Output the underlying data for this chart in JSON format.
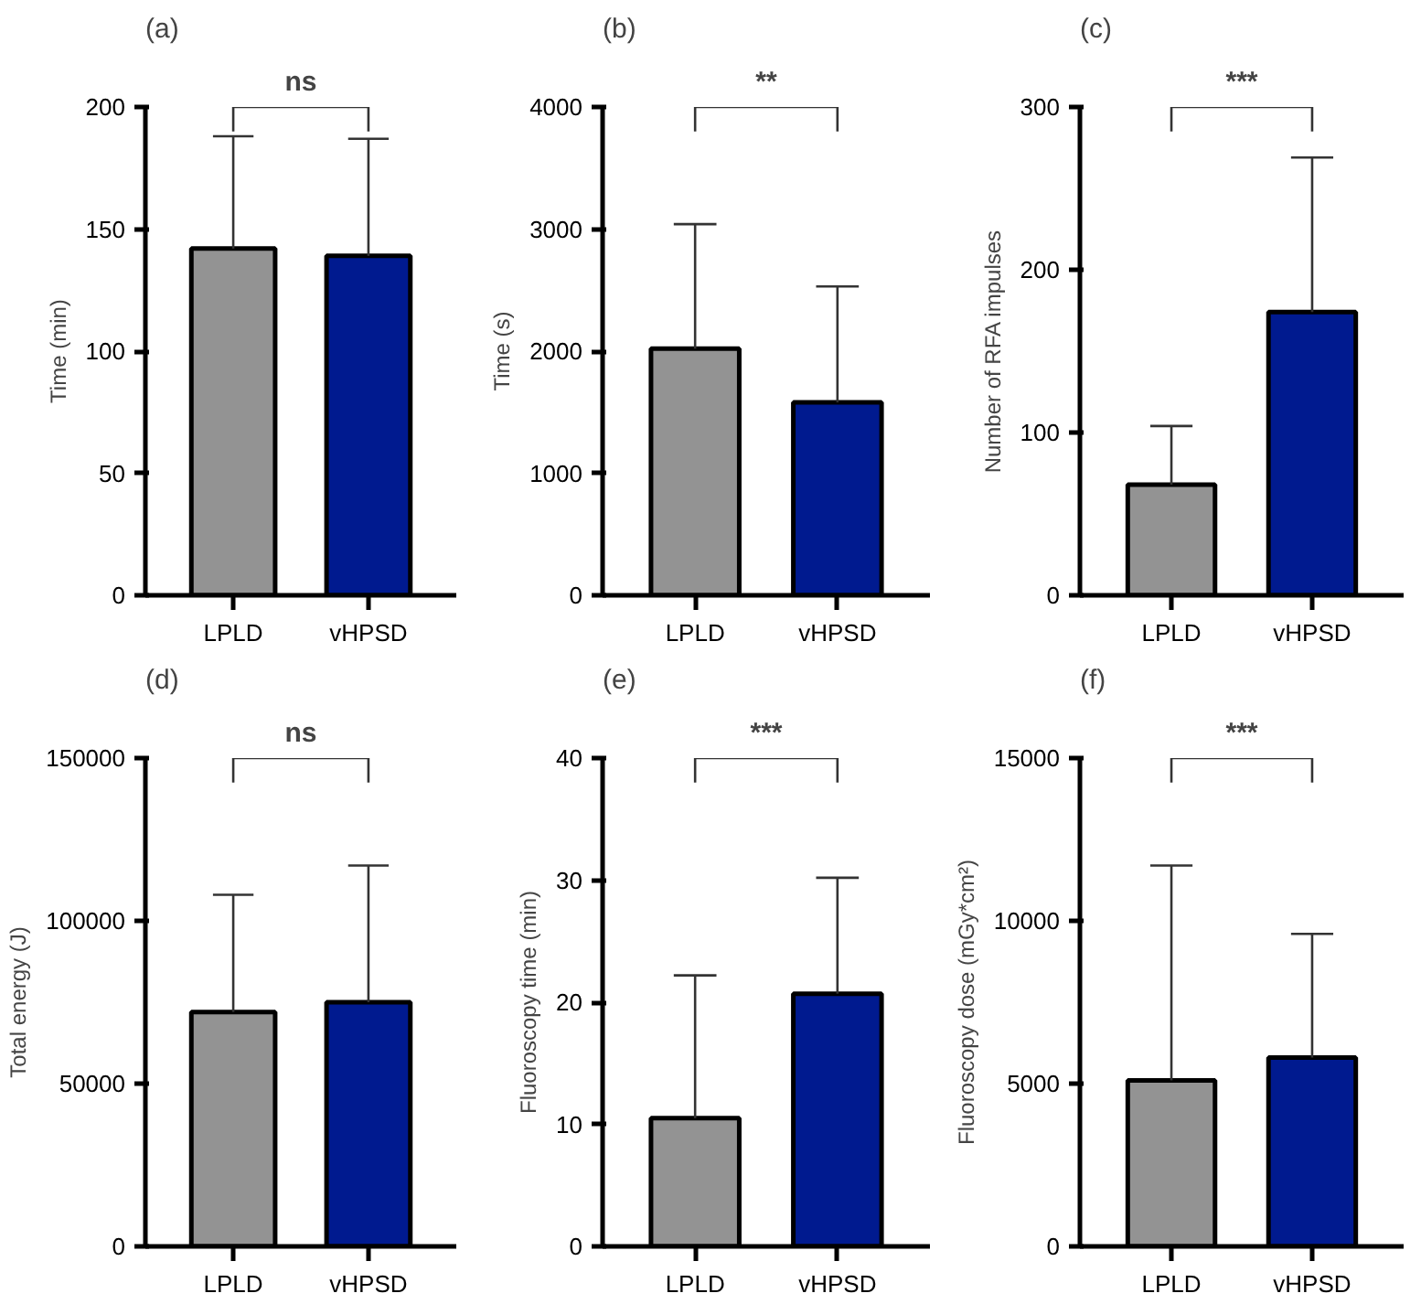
{
  "chart_data": [
    {
      "type": "bar",
      "title": "(a)",
      "ylabel": "Time (min)",
      "categories": [
        "LPLD",
        "vHPSD"
      ],
      "values": [
        142,
        139
      ],
      "colors": [
        "#939393",
        "#001a8f"
      ],
      "errors": [
        [
          142,
          188
        ],
        [
          139,
          187
        ]
      ],
      "ylim": [
        0,
        200
      ],
      "yticks": [
        0,
        50,
        100,
        150,
        200
      ],
      "annotations": [
        "ns"
      ]
    },
    {
      "type": "bar",
      "title": "(b)",
      "ylabel": "Time (s)",
      "categories": [
        "LPLD",
        "vHPSD"
      ],
      "values": [
        2020,
        1580
      ],
      "colors": [
        "#939393",
        "#001a8f"
      ],
      "errors": [
        [
          2020,
          3040
        ],
        [
          1580,
          2530
        ]
      ],
      "ylim": [
        0,
        4000
      ],
      "yticks": [
        0,
        1000,
        2000,
        3000,
        4000
      ],
      "annotations": [
        "**"
      ]
    },
    {
      "type": "bar",
      "title": "(c)",
      "ylabel": "Number of RFA impulses",
      "categories": [
        "LPLD",
        "vHPSD"
      ],
      "values": [
        68,
        174
      ],
      "colors": [
        "#939393",
        "#001a8f"
      ],
      "errors": [
        [
          68,
          104
        ],
        [
          174,
          269
        ]
      ],
      "ylim": [
        0,
        300
      ],
      "yticks": [
        0,
        100,
        200,
        300
      ],
      "annotations": [
        "***"
      ]
    },
    {
      "type": "bar",
      "title": "(d)",
      "ylabel": "Total energy (J)",
      "categories": [
        "LPLD",
        "vHPSD"
      ],
      "values": [
        72000,
        75000
      ],
      "colors": [
        "#939393",
        "#001a8f"
      ],
      "errors": [
        [
          72000,
          108000
        ],
        [
          75000,
          117000
        ]
      ],
      "ylim": [
        0,
        150000
      ],
      "yticks": [
        0,
        50000,
        100000,
        150000
      ],
      "annotations": [
        "ns"
      ]
    },
    {
      "type": "bar",
      "title": "(e)",
      "ylabel": "Fluoroscopy time (min)",
      "categories": [
        "LPLD",
        "vHPSD"
      ],
      "values": [
        10.5,
        20.7
      ],
      "colors": [
        "#939393",
        "#001a8f"
      ],
      "errors": [
        [
          10.5,
          22.2
        ],
        [
          20.7,
          30.2
        ]
      ],
      "ylim": [
        0,
        40
      ],
      "yticks": [
        0,
        10,
        20,
        30,
        40
      ],
      "annotations": [
        "***"
      ]
    },
    {
      "type": "bar",
      "title": "(f)",
      "ylabel": "Fluoroscopy dose (mGy*cm²)",
      "categories": [
        "LPLD",
        "vHPSD"
      ],
      "values": [
        5100,
        5800
      ],
      "colors": [
        "#939393",
        "#001a8f"
      ],
      "errors": [
        [
          5100,
          11700
        ],
        [
          5800,
          9600
        ]
      ],
      "ylim": [
        0,
        15000
      ],
      "yticks": [
        0,
        5000,
        10000,
        15000
      ],
      "annotations": [
        "***"
      ]
    }
  ]
}
